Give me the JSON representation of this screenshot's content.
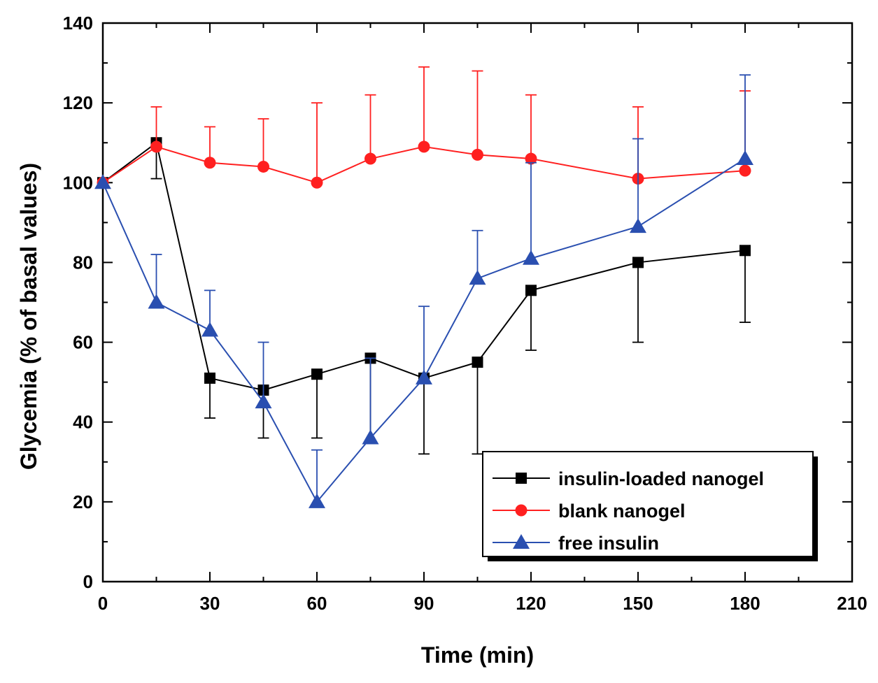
{
  "chart_data": {
    "type": "line",
    "title": "",
    "xlabel": "Time (min)",
    "ylabel": "Glycemia (% of basal values)",
    "xlim": [
      0,
      210
    ],
    "ylim": [
      0,
      140
    ],
    "xticks": [
      0,
      30,
      60,
      90,
      120,
      150,
      180,
      210
    ],
    "yticks": [
      0,
      20,
      40,
      60,
      80,
      100,
      120,
      140
    ],
    "xtick_labels": [
      "0",
      "30",
      "60",
      "90",
      "120",
      "150",
      "180",
      "210"
    ],
    "ytick_labels": [
      "0",
      "20",
      "40",
      "60",
      "80",
      "100",
      "120",
      "140"
    ],
    "grid": false,
    "legend_position": "bottom-right",
    "series": [
      {
        "name": "insulin-loaded nanogel",
        "color": "#000000",
        "marker": "square",
        "error_direction": "down",
        "x": [
          0,
          15,
          30,
          45,
          60,
          75,
          90,
          105,
          120,
          150,
          180
        ],
        "y": [
          100,
          110,
          51,
          48,
          52,
          56,
          51,
          55,
          73,
          80,
          83
        ],
        "err": [
          0,
          9,
          10,
          12,
          16,
          21,
          19,
          23,
          15,
          20,
          18
        ]
      },
      {
        "name": "blank nanogel",
        "color": "#ff2020",
        "marker": "circle",
        "error_direction": "up",
        "x": [
          0,
          15,
          30,
          45,
          60,
          75,
          90,
          105,
          120,
          150,
          180
        ],
        "y": [
          100,
          109,
          105,
          104,
          100,
          106,
          109,
          107,
          106,
          101,
          103
        ],
        "err": [
          0,
          10,
          9,
          12,
          20,
          16,
          20,
          21,
          16,
          18,
          20
        ]
      },
      {
        "name": "free insulin",
        "color": "#2a4fb0",
        "marker": "triangle",
        "error_direction": "up",
        "x": [
          0,
          15,
          30,
          45,
          60,
          75,
          90,
          105,
          120,
          150,
          180
        ],
        "y": [
          100,
          70,
          63,
          45,
          20,
          36,
          51,
          76,
          81,
          89,
          106
        ],
        "err": [
          0,
          12,
          10,
          15,
          13,
          20,
          18,
          12,
          24,
          22,
          21
        ]
      }
    ]
  }
}
